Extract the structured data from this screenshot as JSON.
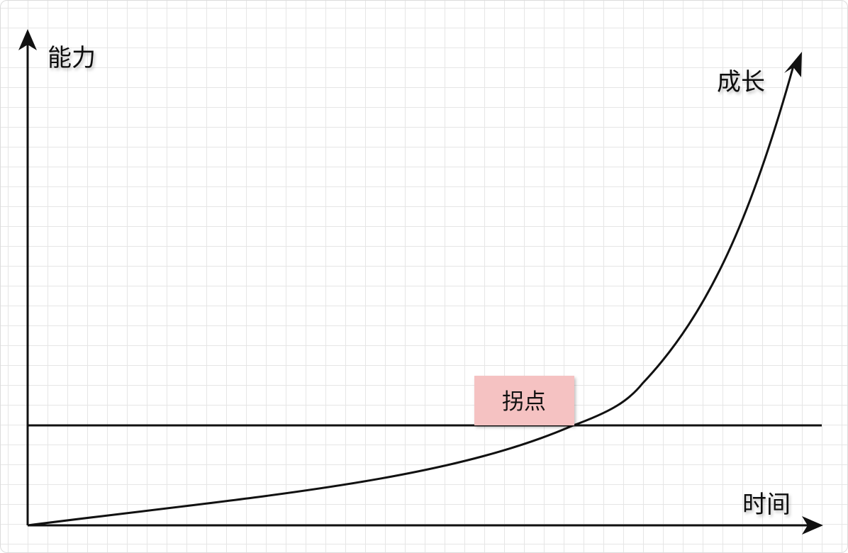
{
  "diagram": {
    "y_axis_label": "能力",
    "x_axis_label": "时间",
    "curve_label": "成长",
    "marker_label": "拐点",
    "colors": {
      "line": "#111111",
      "grid": "#e6e6e6",
      "marker_fill": "#f5c2c2",
      "background": "#ffffff"
    }
  }
}
